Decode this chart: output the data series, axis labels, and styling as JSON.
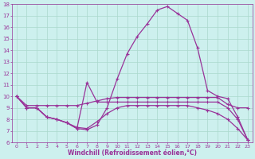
{
  "xlabel": "Windchill (Refroidissement éolien,°C)",
  "bg_color": "#cdf0ee",
  "grid_color": "#aad8cc",
  "line_color": "#993399",
  "xlim": [
    -0.5,
    23.5
  ],
  "ylim": [
    6,
    18
  ],
  "yticks": [
    6,
    7,
    8,
    9,
    10,
    11,
    12,
    13,
    14,
    15,
    16,
    17,
    18
  ],
  "xticks": [
    0,
    1,
    2,
    3,
    4,
    5,
    6,
    7,
    8,
    9,
    10,
    11,
    12,
    13,
    14,
    15,
    16,
    17,
    18,
    19,
    20,
    21,
    22,
    23
  ],
  "series1_x": [
    0,
    1,
    2,
    3,
    4,
    5,
    6,
    7,
    8,
    9,
    10,
    11,
    12,
    13,
    14,
    15,
    16,
    17,
    18,
    19,
    20,
    21,
    22,
    23
  ],
  "series1_y": [
    10.0,
    9.2,
    9.2,
    9.2,
    9.2,
    9.2,
    9.2,
    9.4,
    9.6,
    9.8,
    9.9,
    9.9,
    9.9,
    9.9,
    9.9,
    9.9,
    9.9,
    9.9,
    9.9,
    9.9,
    9.9,
    9.3,
    9.0,
    9.0
  ],
  "series2_x": [
    0,
    1,
    2,
    3,
    4,
    5,
    6,
    7,
    8,
    9,
    10,
    11,
    12,
    13,
    14,
    15,
    16,
    17,
    18,
    19,
    20,
    21,
    22,
    23
  ],
  "series2_y": [
    10.0,
    9.0,
    9.0,
    8.2,
    8.0,
    7.7,
    7.2,
    11.2,
    9.5,
    9.5,
    9.5,
    9.5,
    9.5,
    9.5,
    9.5,
    9.5,
    9.5,
    9.5,
    9.5,
    9.5,
    9.5,
    9.0,
    8.0,
    6.2
  ],
  "series3_x": [
    0,
    1,
    2,
    3,
    4,
    5,
    6,
    7,
    8,
    9,
    10,
    11,
    12,
    13,
    14,
    15,
    16,
    17,
    18,
    19,
    20,
    21,
    22,
    23
  ],
  "series3_y": [
    10.0,
    9.0,
    9.0,
    8.2,
    8.0,
    7.7,
    7.2,
    7.1,
    7.5,
    9.0,
    11.5,
    13.7,
    15.2,
    16.3,
    17.5,
    17.8,
    17.2,
    16.6,
    14.2,
    10.5,
    10.0,
    9.8,
    8.2,
    6.2
  ],
  "series4_x": [
    0,
    1,
    2,
    3,
    4,
    5,
    6,
    7,
    8,
    9,
    10,
    11,
    12,
    13,
    14,
    15,
    16,
    17,
    18,
    19,
    20,
    21,
    22,
    23
  ],
  "series4_y": [
    10.0,
    9.0,
    9.0,
    8.2,
    8.0,
    7.7,
    7.3,
    7.2,
    7.8,
    8.5,
    9.0,
    9.2,
    9.2,
    9.2,
    9.2,
    9.2,
    9.2,
    9.2,
    9.0,
    8.8,
    8.5,
    8.0,
    7.2,
    6.2
  ]
}
